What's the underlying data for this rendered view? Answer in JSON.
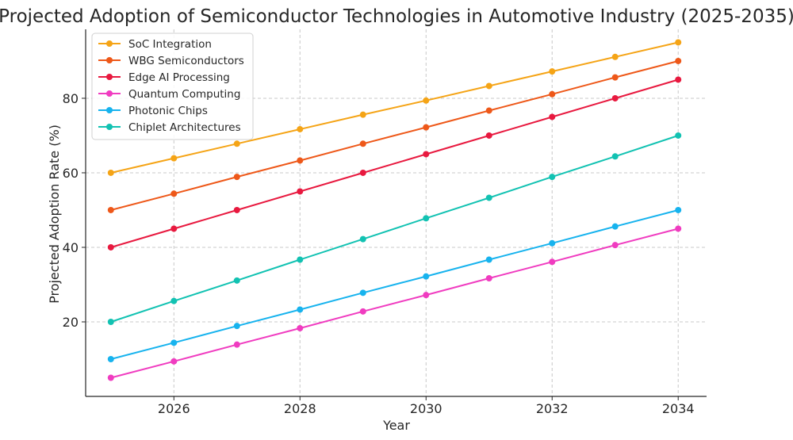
{
  "chart_data": {
    "type": "line",
    "title": "Projected Adoption of Semiconductor Technologies in Automotive Industry (2025-2035)",
    "xlabel": "Year",
    "ylabel": "Projected Adoption Rate (%)",
    "x": [
      2025,
      2026,
      2027,
      2028,
      2029,
      2030,
      2031,
      2032,
      2033,
      2034
    ],
    "xlim": [
      2024.6,
      2034.45
    ],
    "ylim": [
      0,
      98.5
    ],
    "xticks": [
      2026,
      2028,
      2030,
      2032,
      2034
    ],
    "yticks": [
      20,
      40,
      60,
      80
    ],
    "grid": true,
    "legend_position": "top-left",
    "series": [
      {
        "name": "SoC Integration",
        "color": "#f5a416",
        "values": [
          60,
          63.9,
          67.8,
          71.7,
          75.6,
          79.4,
          83.3,
          87.2,
          91.1,
          95
        ]
      },
      {
        "name": "WBG Semiconductors",
        "color": "#ee5819",
        "values": [
          50,
          54.4,
          58.9,
          63.3,
          67.8,
          72.2,
          76.7,
          81.1,
          85.6,
          90
        ]
      },
      {
        "name": "Edge AI Processing",
        "color": "#e8193f",
        "values": [
          40,
          45,
          50,
          55,
          60,
          65,
          70,
          75,
          80,
          85
        ]
      },
      {
        "name": "Quantum Computing",
        "color": "#f03cc0",
        "values": [
          5,
          9.4,
          13.9,
          18.3,
          22.8,
          27.2,
          31.7,
          36.1,
          40.6,
          45
        ]
      },
      {
        "name": "Photonic Chips",
        "color": "#17b3ee",
        "values": [
          10,
          14.4,
          18.9,
          23.3,
          27.8,
          32.2,
          36.7,
          41.1,
          45.6,
          50
        ]
      },
      {
        "name": "Chiplet Architectures",
        "color": "#12c2b2",
        "values": [
          20,
          25.6,
          31.1,
          36.7,
          42.2,
          47.8,
          53.3,
          58.9,
          64.4,
          70
        ]
      }
    ]
  }
}
